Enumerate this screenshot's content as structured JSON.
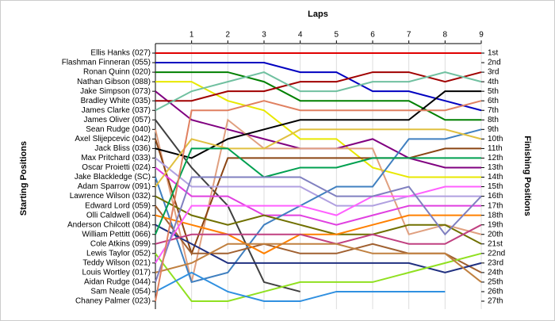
{
  "chart_data": {
    "type": "line",
    "title": "Laps",
    "y_label": "Starting Positions",
    "y2_label": "Finishing Positions",
    "x": [
      0,
      1,
      2,
      3,
      4,
      5,
      6,
      7,
      8,
      9
    ],
    "xlim": [
      0,
      9
    ],
    "xticks": [
      1,
      2,
      3,
      4,
      5,
      6,
      7,
      8,
      9
    ],
    "ylim": [
      1,
      27
    ],
    "finishing_positions": [
      "1st",
      "2nd",
      "3rd",
      "4th",
      "5th",
      "6th",
      "7th",
      "8th",
      "9th",
      "10th",
      "11th",
      "12th",
      "13th",
      "14th",
      "15th",
      "16th",
      "17th",
      "18th",
      "19th",
      "20th",
      "21st",
      "22nd",
      "23rd",
      "24th",
      "25th",
      "26th",
      "27th"
    ],
    "series": [
      {
        "name": "Ellis Hanks (027)",
        "color": "#e00000",
        "values": [
          1,
          1,
          1,
          1,
          1,
          1,
          1,
          1,
          1,
          1
        ]
      },
      {
        "name": "Flashman Finneran (055)",
        "color": "#0000c0",
        "values": [
          2,
          2,
          2,
          2,
          3,
          3,
          5,
          5,
          6,
          7
        ]
      },
      {
        "name": "Ronan Quinn (020)",
        "color": "#008000",
        "values": [
          3,
          3,
          3,
          4,
          6,
          6,
          6,
          6,
          8,
          8
        ]
      },
      {
        "name": "Nathan Gibson (088)",
        "color": "#e8e800",
        "values": [
          4,
          4,
          6,
          7,
          10,
          10,
          13,
          14,
          14,
          14
        ]
      },
      {
        "name": "Jake Simpson (073)",
        "color": "#800080",
        "values": [
          5,
          8,
          9,
          10,
          11,
          11,
          10,
          12,
          13,
          13
        ]
      },
      {
        "name": "Bradley White (035)",
        "color": "#a00000",
        "values": [
          6,
          6,
          5,
          5,
          4,
          4,
          3,
          3,
          4,
          3
        ]
      },
      {
        "name": "James Clarke (037)",
        "color": "#70c0a0",
        "values": [
          7,
          5,
          4,
          3,
          5,
          5,
          4,
          4,
          3,
          4
        ]
      },
      {
        "name": "James Oliver (057)",
        "color": "#404040",
        "values": [
          8,
          13,
          17,
          25,
          26,
          null,
          null,
          null,
          null,
          null
        ]
      },
      {
        "name": "Sean Rudge (040)",
        "color": "#e0a080",
        "values": [
          9,
          25,
          8,
          11,
          11,
          11,
          11,
          20,
          19,
          20
        ]
      },
      {
        "name": "Axel Slijepcevic (042)",
        "color": "#8b4513",
        "values": [
          10,
          22,
          12,
          12,
          12,
          12,
          12,
          12,
          11,
          11
        ]
      },
      {
        "name": "Jack Bliss (036)",
        "color": "#000000",
        "values": [
          11,
          12,
          10,
          9,
          8,
          8,
          8,
          8,
          5,
          5
        ]
      },
      {
        "name": "Max Pritchard (033)",
        "color": "#b0a0e0",
        "values": [
          12,
          15,
          15,
          15,
          15,
          17,
          17,
          16,
          16,
          16
        ]
      },
      {
        "name": "Oscar Proietti (024)",
        "color": "#e040e0",
        "values": [
          13,
          16,
          16,
          18,
          18,
          19,
          18,
          17,
          17,
          17
        ]
      },
      {
        "name": "Jake Blackledge (SC)",
        "color": "#4080c0",
        "values": [
          14,
          25,
          24,
          19,
          17,
          15,
          15,
          10,
          10,
          9
        ]
      },
      {
        "name": "Adam Sparrow (091)",
        "color": "#e0c040",
        "values": [
          15,
          10,
          11,
          11,
          9,
          9,
          9,
          9,
          9,
          10
        ]
      },
      {
        "name": "Lawrence Wilson (032)",
        "color": "#707000",
        "values": [
          16,
          18,
          19,
          18,
          19,
          20,
          20,
          19,
          19,
          21
        ]
      },
      {
        "name": "Edward Lord (059)",
        "color": "#a06030",
        "values": [
          17,
          22,
          22,
          21,
          22,
          22,
          21,
          22,
          22,
          24
        ]
      },
      {
        "name": "Olli Caldwell (064)",
        "color": "#ff8000",
        "values": [
          18,
          19,
          20,
          22,
          20,
          20,
          19,
          18,
          18,
          18
        ]
      },
      {
        "name": "Anderson Chilcott (084)",
        "color": "#203080",
        "values": [
          19,
          21,
          23,
          23,
          23,
          23,
          23,
          23,
          24,
          23
        ]
      },
      {
        "name": "William Pettitt (066)",
        "color": "#00a050",
        "values": [
          20,
          11,
          11,
          14,
          13,
          13,
          12,
          12,
          12,
          12
        ]
      },
      {
        "name": "Cole Atkins (099)",
        "color": "#c04080",
        "values": [
          21,
          20,
          20,
          20,
          20,
          21,
          20,
          21,
          21,
          19
        ]
      },
      {
        "name": "Lewis Taylor (052)",
        "color": "#90e020",
        "values": [
          22,
          27,
          27,
          26,
          25,
          25,
          25,
          24,
          23,
          22
        ]
      },
      {
        "name": "Teddy Wilson (021)",
        "color": "#ff60ff",
        "values": [
          23,
          17,
          17,
          17,
          17,
          18,
          16,
          16,
          15,
          15
        ]
      },
      {
        "name": "Louis Wortley (017)",
        "color": "#c08040",
        "values": [
          24,
          23,
          21,
          21,
          21,
          21,
          22,
          22,
          22,
          25
        ]
      },
      {
        "name": "Aidan Rudge (044)",
        "color": "#8080c0",
        "values": [
          25,
          14,
          14,
          14,
          14,
          16,
          16,
          15,
          20,
          16
        ]
      },
      {
        "name": "Sam Neale (054)",
        "color": "#3090e0",
        "values": [
          26,
          24,
          26,
          27,
          27,
          26,
          26,
          26,
          26,
          null
        ]
      },
      {
        "name": "Chaney Palmer (023)",
        "color": "#e08060",
        "values": [
          27,
          7,
          7,
          6,
          7,
          7,
          7,
          7,
          7,
          6
        ]
      }
    ]
  }
}
